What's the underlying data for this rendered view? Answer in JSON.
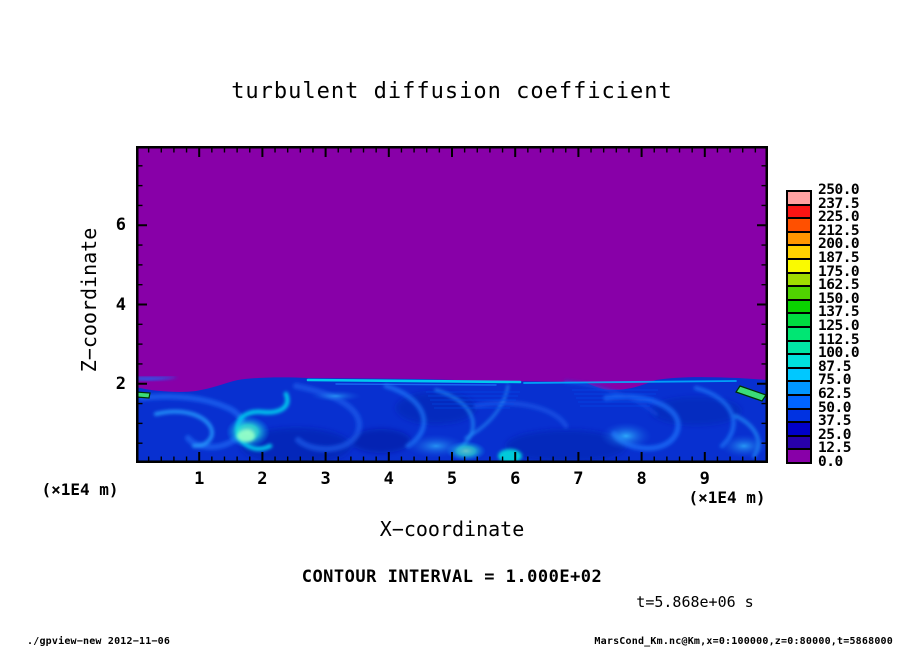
{
  "title": "turbulent diffusion coefficient",
  "axes": {
    "x": {
      "label": "X−coordinate",
      "unit_left": "(×1E4 m)",
      "unit_right": "(×1E4 m)",
      "tick_labels": [
        "1",
        "2",
        "3",
        "4",
        "5",
        "6",
        "7",
        "8",
        "9"
      ],
      "tick_values": [
        1,
        2,
        3,
        4,
        5,
        6,
        7,
        8,
        9
      ],
      "minor_step": 0.2,
      "range": [
        0,
        10
      ]
    },
    "y": {
      "label": "Z−coordinate",
      "tick_labels": [
        "2",
        "4",
        "6"
      ],
      "tick_values": [
        2,
        4,
        6
      ],
      "minor_step": 0.5,
      "range": [
        0,
        8
      ]
    }
  },
  "annotations": {
    "contour_interval": "CONTOUR INTERVAL = 1.000E+02",
    "time": "t=5.868e+06 s"
  },
  "colorbar": {
    "labels_top_to_bottom": [
      "250.0",
      "237.5",
      "225.0",
      "212.5",
      "200.0",
      "187.5",
      "175.0",
      "162.5",
      "150.0",
      "137.5",
      "125.0",
      "112.5",
      "100.0",
      "87.5",
      "75.0",
      "62.5",
      "50.0",
      "37.5",
      "25.0",
      "12.5",
      "0.0"
    ],
    "colors_bottom_to_top": [
      "#8800A8",
      "#2800AA",
      "#0000C8",
      "#0032E1",
      "#0064FF",
      "#0096FF",
      "#00C8FF",
      "#00E1DC",
      "#00E6A5",
      "#00E673",
      "#00DC41",
      "#0AD200",
      "#50D200",
      "#A0DC00",
      "#FAFA00",
      "#FFD200",
      "#FF9600",
      "#FF5000",
      "#FA1414",
      "#FF6464"
    ],
    "top_cell_color": "#FFA0A0"
  },
  "palette": {
    "field": "#8800A8",
    "layer_base": "#0830D0",
    "layer_dark": "#0520A8",
    "swirl_mid": "#1E64F0",
    "swirl_light": "#28A0FF",
    "cyan": "#00D2F0",
    "bright_core": "#2EE8B8",
    "green_feature": "#3CDC78"
  },
  "footer": {
    "left": "./gpview−new  2012−11−06",
    "right": "MarsCond_Km.nc@Km,x=0:100000,z=0:80000,t=5868000"
  },
  "chart_data": {
    "type": "heatmap",
    "title": "turbulent diffusion coefficient",
    "xlabel": "X−coordinate",
    "ylabel": "Z−coordinate",
    "x_unit": "×1E4 m",
    "y_unit": "×1E4 m",
    "xlim": [
      0,
      10
    ],
    "ylim": [
      0,
      8
    ],
    "x_ticks": [
      1,
      2,
      3,
      4,
      5,
      6,
      7,
      8,
      9
    ],
    "y_ticks": [
      2,
      4,
      6
    ],
    "grid": false,
    "legend_position": "colorbar-right",
    "colorbar_range": [
      0.0,
      250.0
    ],
    "colorbar_step": 12.5,
    "contour_interval": 100.0,
    "time_seconds": 5868000,
    "regions": [
      {
        "name": "upper quiescent field",
        "x_range": [
          0,
          10
        ],
        "z_range": [
          2,
          8
        ],
        "approx_value": 0,
        "color": "#8800A8"
      },
      {
        "name": "turbulent boundary layer",
        "x_range": [
          0,
          10
        ],
        "z_range": [
          0,
          2
        ],
        "approx_value_range": [
          12.5,
          75
        ],
        "color": "deep blue with lighter blue/cyan filaments"
      },
      {
        "name": "bright vortex hotspot",
        "x": 1.8,
        "z": 0.6,
        "approx_value_range": [
          87.5,
          112.5
        ]
      },
      {
        "name": "cyan shear streak along layer top",
        "x_range": [
          3.3,
          9.5
        ],
        "z": 1.95,
        "approx_value_range": [
          62.5,
          87.5
        ]
      },
      {
        "name": "small green contour feature (left edge)",
        "x": 0.05,
        "z": 1.1,
        "approx_value_range": [
          100,
          125
        ]
      },
      {
        "name": "small green contour feature (right edge)",
        "x": 9.8,
        "z": 1.8,
        "approx_value_range": [
          100,
          125
        ]
      }
    ]
  }
}
